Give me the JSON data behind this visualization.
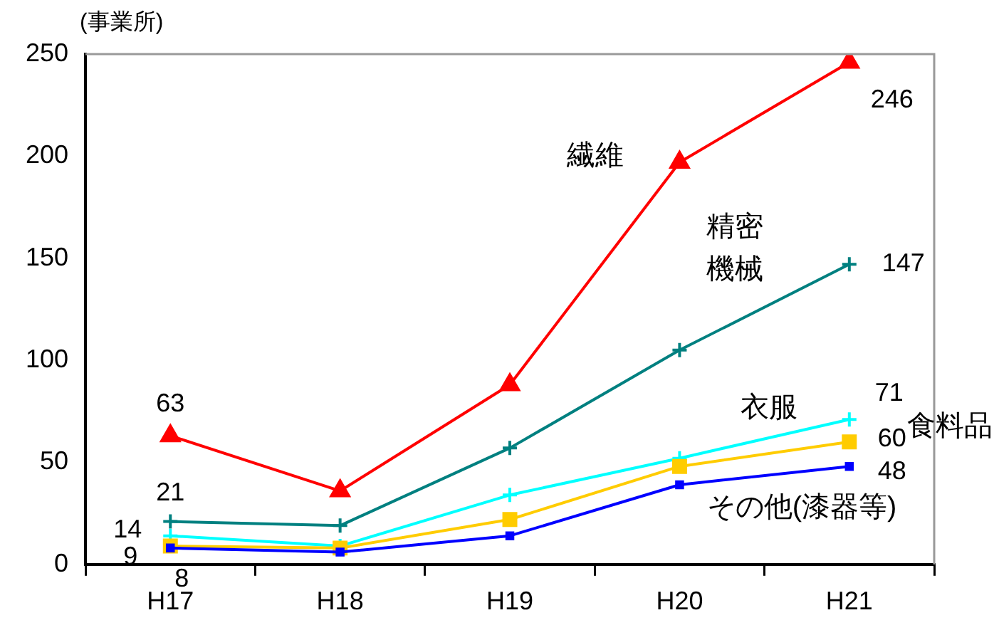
{
  "chart_data": {
    "type": "line",
    "ylabel": "(事業所)",
    "categories": [
      "H17",
      "H18",
      "H19",
      "H20",
      "H21"
    ],
    "ylim": [
      0,
      250
    ],
    "yticks": [
      0,
      50,
      100,
      150,
      200,
      250
    ],
    "grid": false,
    "legend": false,
    "line_style": "solid",
    "series": [
      {
        "name": "繊維",
        "color": "#ff0000",
        "marker": "triangle",
        "values": [
          63,
          36,
          88,
          197,
          246
        ],
        "value_labels": [
          "63",
          null,
          null,
          null,
          "246"
        ]
      },
      {
        "name": "精密機械",
        "color": "#008080",
        "marker": "cross",
        "values": [
          21,
          19,
          57,
          105,
          147
        ],
        "value_labels": [
          "21",
          null,
          null,
          null,
          "147"
        ]
      },
      {
        "name": "衣服",
        "color": "#00ffff",
        "marker": "cross",
        "values": [
          14,
          9,
          34,
          52,
          71
        ],
        "value_labels": [
          "14",
          null,
          null,
          null,
          "71"
        ]
      },
      {
        "name": "食料品",
        "color": "#ffcc00",
        "marker": "square",
        "values": [
          9,
          8,
          22,
          48,
          60
        ],
        "value_labels": [
          "9",
          null,
          null,
          null,
          "60"
        ]
      },
      {
        "name": "その他(漆器等)",
        "color": "#0000ff",
        "marker": "square",
        "values": [
          8,
          6,
          14,
          39,
          48
        ],
        "value_labels": [
          "8",
          null,
          null,
          null,
          "48"
        ]
      }
    ]
  }
}
